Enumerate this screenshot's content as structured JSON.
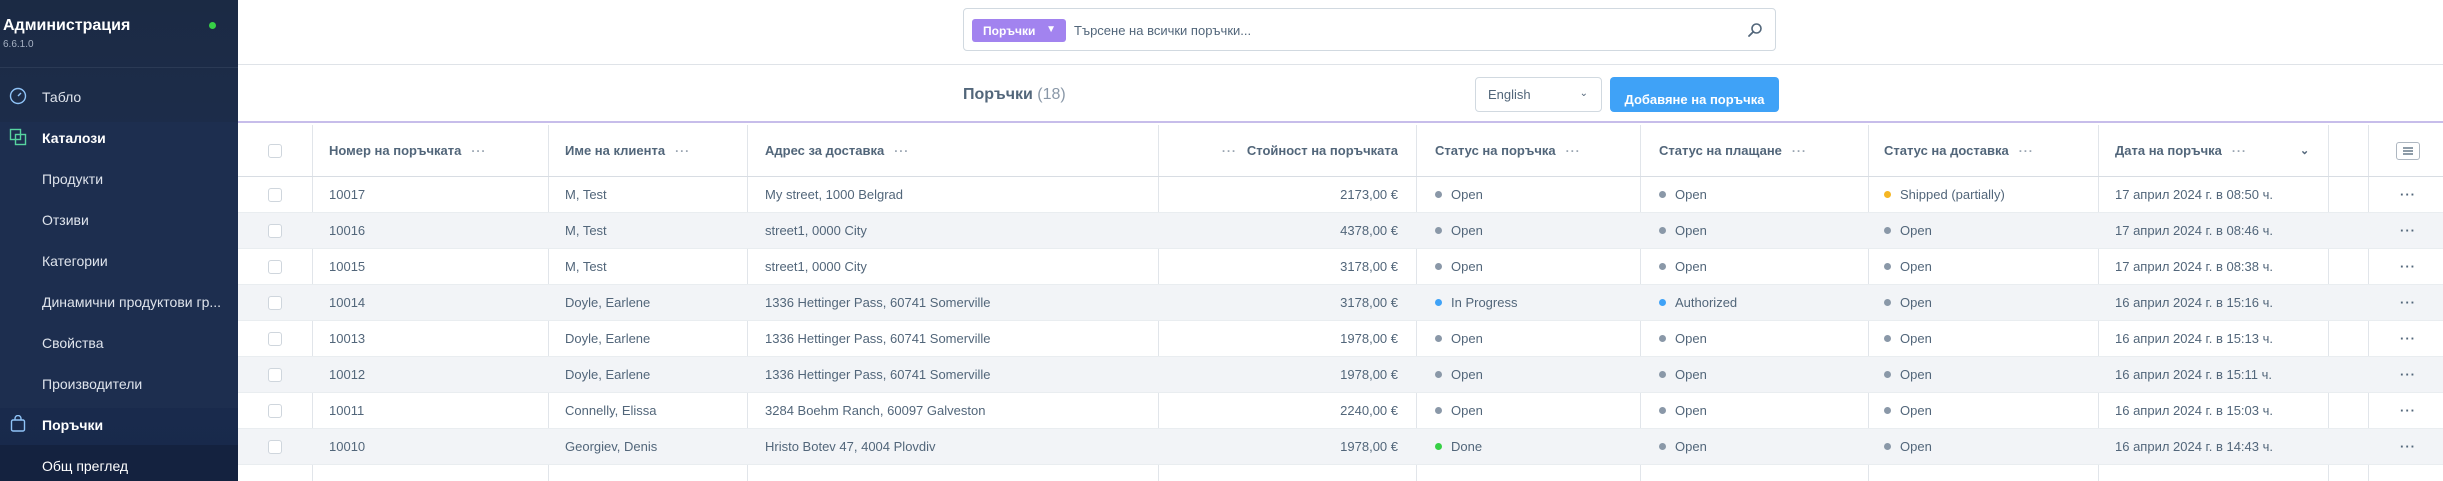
{
  "sidebar": {
    "title": "Администрация",
    "version": "6.6.1.0",
    "items": [
      {
        "label": "Табло",
        "type": "section-light",
        "icon": "gauge-icon"
      },
      {
        "label": "Каталози",
        "type": "section",
        "icon": "catalog-icon"
      },
      {
        "label": "Продукти",
        "type": "child"
      },
      {
        "label": "Отзиви",
        "type": "child"
      },
      {
        "label": "Категории",
        "type": "child"
      },
      {
        "label": "Динамични продуктови гр...",
        "type": "child"
      },
      {
        "label": "Свойства",
        "type": "child"
      },
      {
        "label": "Производители",
        "type": "child"
      },
      {
        "label": "Поръчки",
        "type": "section",
        "icon": "bag-icon"
      },
      {
        "label": "Общ преглед",
        "type": "selected"
      }
    ]
  },
  "search": {
    "type_label": "Поръчки",
    "placeholder": "Търсене на всички поръчки..."
  },
  "smartbar": {
    "title": "Поръчки",
    "count": "(18)",
    "language": "English",
    "add_label": "Добавяне на поръчка"
  },
  "colors": {
    "accent": "#3fa2f7",
    "search_type": "#a283ef",
    "status_open": "#8a98a8",
    "status_progress": "#3fa2f7",
    "status_done": "#37d046",
    "status_shipped": "#f5b624"
  },
  "table": {
    "columns": [
      "Номер на поръчката",
      "Име на клиента",
      "Адрес за доставка",
      "Стойност на поръчката",
      "Статус на поръчка",
      "Статус на плащане",
      "Статус на доставка",
      "Дата на поръчка"
    ],
    "rows": [
      {
        "number": "10017",
        "customer": "M, Test",
        "address": "My street, 1000 Belgrad",
        "amount": "2173,00 €",
        "order_status": "Open",
        "order_color": "#8a98a8",
        "payment_status": "Open",
        "payment_color": "#8a98a8",
        "delivery_status": "Shipped (partially)",
        "delivery_color": "#f5b624",
        "date": "17 април 2024 г. в 08:50 ч."
      },
      {
        "number": "10016",
        "customer": "M, Test",
        "address": "street1, 0000 City",
        "amount": "4378,00 €",
        "order_status": "Open",
        "order_color": "#8a98a8",
        "payment_status": "Open",
        "payment_color": "#8a98a8",
        "delivery_status": "Open",
        "delivery_color": "#8a98a8",
        "date": "17 април 2024 г. в 08:46 ч."
      },
      {
        "number": "10015",
        "customer": "M, Test",
        "address": "street1, 0000 City",
        "amount": "3178,00 €",
        "order_status": "Open",
        "order_color": "#8a98a8",
        "payment_status": "Open",
        "payment_color": "#8a98a8",
        "delivery_status": "Open",
        "delivery_color": "#8a98a8",
        "date": "17 април 2024 г. в 08:38 ч."
      },
      {
        "number": "10014",
        "customer": "Doyle, Earlene",
        "address": "1336 Hettinger Pass, 60741 Somerville",
        "amount": "3178,00 €",
        "order_status": "In Progress",
        "order_color": "#3fa2f7",
        "payment_status": "Authorized",
        "payment_color": "#3fa2f7",
        "delivery_status": "Open",
        "delivery_color": "#8a98a8",
        "date": "16 април 2024 г. в 15:16 ч."
      },
      {
        "number": "10013",
        "customer": "Doyle, Earlene",
        "address": "1336 Hettinger Pass, 60741 Somerville",
        "amount": "1978,00 €",
        "order_status": "Open",
        "order_color": "#8a98a8",
        "payment_status": "Open",
        "payment_color": "#8a98a8",
        "delivery_status": "Open",
        "delivery_color": "#8a98a8",
        "date": "16 април 2024 г. в 15:13 ч."
      },
      {
        "number": "10012",
        "customer": "Doyle, Earlene",
        "address": "1336 Hettinger Pass, 60741 Somerville",
        "amount": "1978,00 €",
        "order_status": "Open",
        "order_color": "#8a98a8",
        "payment_status": "Open",
        "payment_color": "#8a98a8",
        "delivery_status": "Open",
        "delivery_color": "#8a98a8",
        "date": "16 април 2024 г. в 15:11 ч."
      },
      {
        "number": "10011",
        "customer": "Connelly, Elissa",
        "address": "3284 Boehm Ranch, 60097 Galveston",
        "amount": "2240,00 €",
        "order_status": "Open",
        "order_color": "#8a98a8",
        "payment_status": "Open",
        "payment_color": "#8a98a8",
        "delivery_status": "Open",
        "delivery_color": "#8a98a8",
        "date": "16 април 2024 г. в 15:03 ч."
      },
      {
        "number": "10010",
        "customer": "Georgiev, Denis",
        "address": "Hristo Botev 47, 4004 Plovdiv",
        "amount": "1978,00 €",
        "order_status": "Done",
        "order_color": "#37d046",
        "payment_status": "Open",
        "payment_color": "#8a98a8",
        "delivery_status": "Open",
        "delivery_color": "#8a98a8",
        "date": "16 април 2024 г. в 14:43 ч."
      }
    ]
  }
}
